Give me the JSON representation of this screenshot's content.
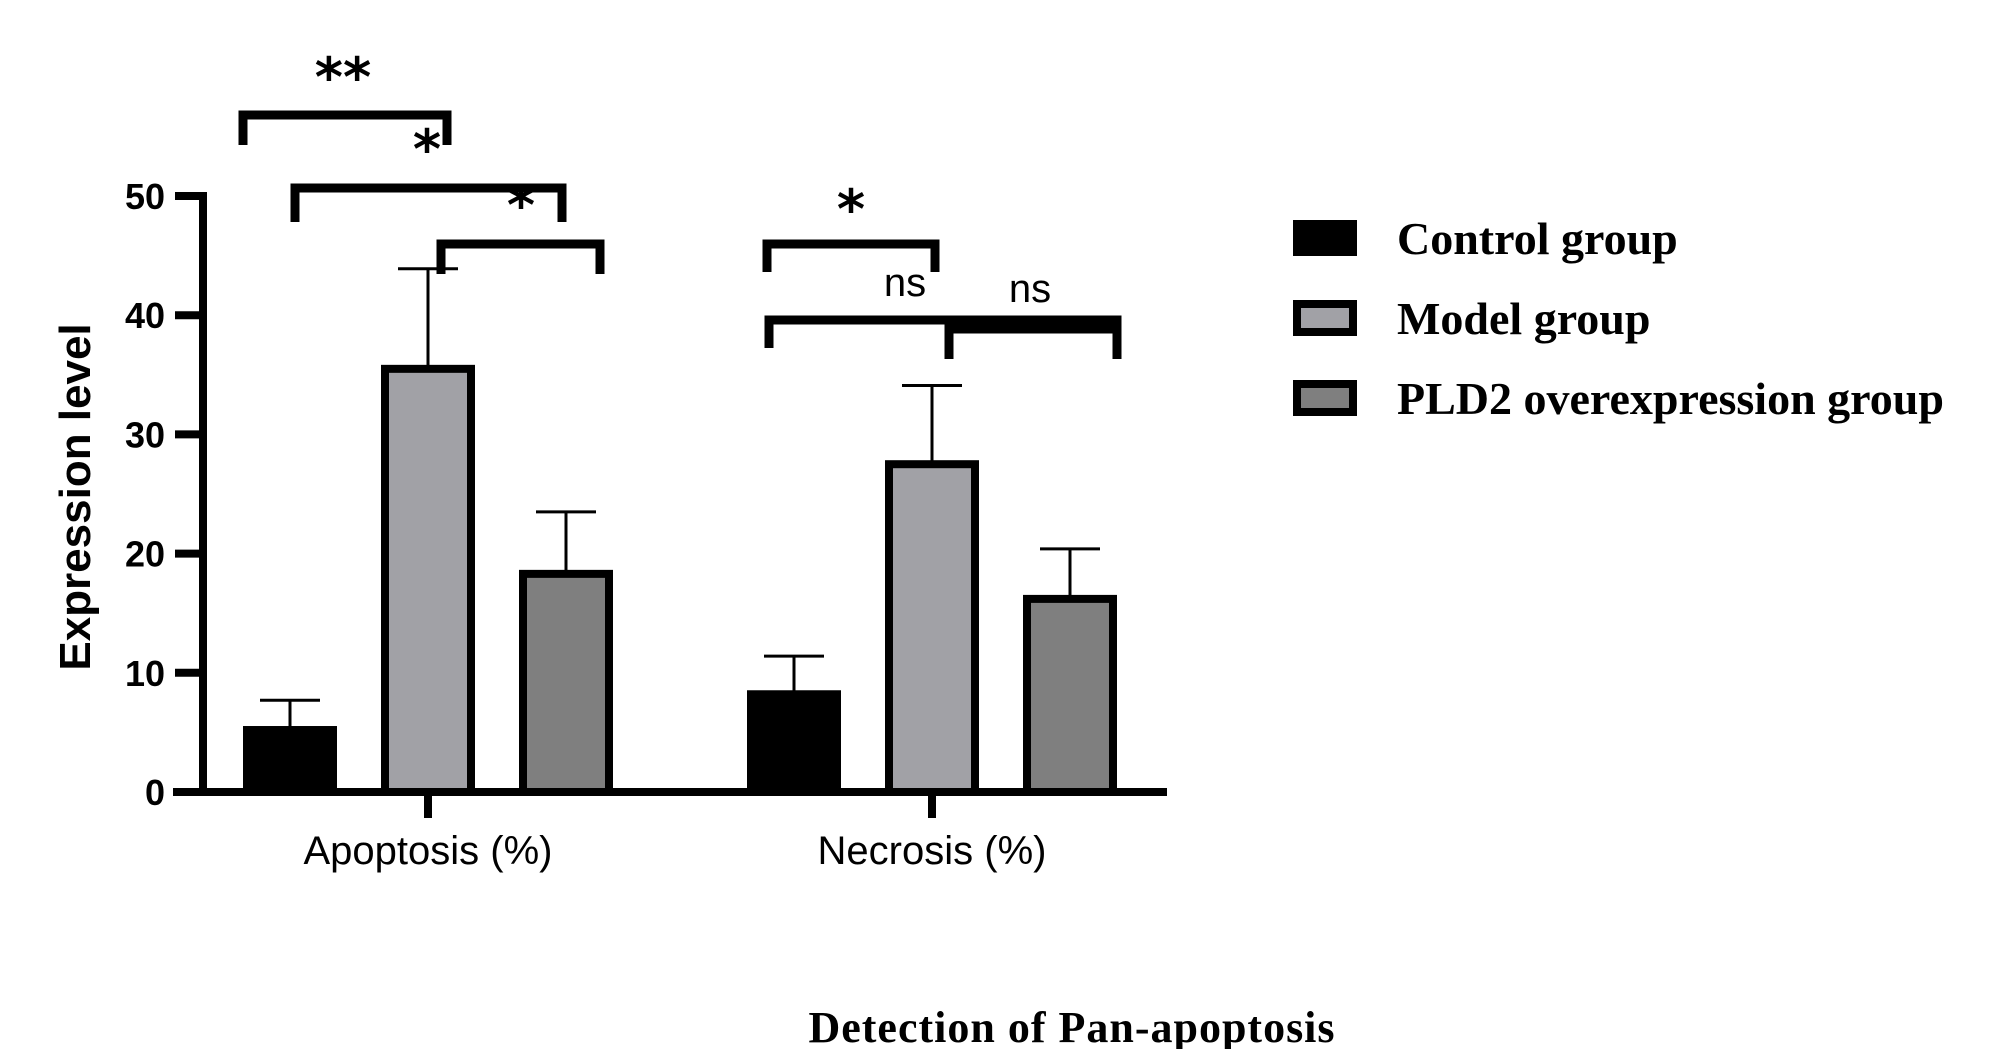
{
  "chart_data": {
    "type": "bar",
    "categories": [
      "Apoptosis (%)",
      "Necrosis (%)"
    ],
    "series": [
      {
        "name": "Control group",
        "values": [
          5.2,
          8.2
        ],
        "errors": [
          2.5,
          3.2
        ],
        "color": "#000000"
      },
      {
        "name": "Model group",
        "values": [
          35.5,
          27.5
        ],
        "errors": [
          8.4,
          6.6
        ],
        "color": "#a1a1a6"
      },
      {
        "name": "PLD2 overexpression group",
        "values": [
          18.3,
          16.2
        ],
        "errors": [
          5.2,
          4.2
        ],
        "color": "#7f7f7f"
      }
    ],
    "xlabel": "",
    "ylabel": "Expression level",
    "ylim": [
      0,
      50
    ],
    "yticks": [
      0,
      10,
      20,
      30,
      40,
      50
    ],
    "legend_position": "right",
    "grid": false,
    "caption": "Detection of Pan-apoptosis",
    "significance": [
      {
        "category": 0,
        "from": 0,
        "to": 1,
        "label": "**"
      },
      {
        "category": 0,
        "from": 0,
        "to": 2,
        "label": "*"
      },
      {
        "category": 0,
        "from": 1,
        "to": 2,
        "label": "*"
      },
      {
        "category": 1,
        "from": 0,
        "to": 1,
        "label": "*"
      },
      {
        "category": 1,
        "from": 0,
        "to": 2,
        "label": "ns"
      },
      {
        "category": 1,
        "from": 1,
        "to": 2,
        "label": "ns"
      }
    ]
  }
}
